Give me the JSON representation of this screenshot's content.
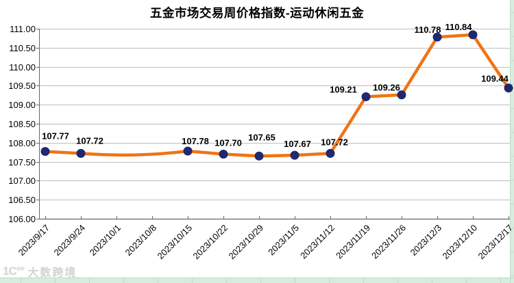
{
  "chart_data": {
    "type": "line",
    "title": "五金市场交易周价格指数-运动休闲五金",
    "categories": [
      "2023/9/17",
      "2023/9/24",
      "2023/10/1",
      "2023/10/8",
      "2023/10/15",
      "2023/10/22",
      "2023/10/29",
      "2023/11/5",
      "2023/11/12",
      "2023/11/19",
      "2023/11/26",
      "2023/12/3",
      "2023/12/10",
      "2023/12/17"
    ],
    "values": [
      107.77,
      107.72,
      null,
      null,
      107.78,
      107.7,
      107.65,
      107.67,
      107.72,
      109.21,
      109.26,
      110.78,
      110.84,
      109.44
    ],
    "data_labels": [
      "107.77",
      "107.72",
      null,
      null,
      "107.78",
      "107.70",
      "107.65",
      "107.67",
      "107.72",
      "109.21",
      "109.26",
      "110.78",
      "110.84",
      "109.44"
    ],
    "xlabel": "",
    "ylabel": "",
    "ylim": [
      106,
      111
    ],
    "ytick_step": 0.5,
    "ytick_labels": [
      "106.00",
      "106.50",
      "107.00",
      "107.50",
      "108.00",
      "108.50",
      "109.00",
      "109.50",
      "110.00",
      "110.50",
      "111.00"
    ],
    "grid": "horizontal-only",
    "legend_position": "none",
    "line_smoothed_over_missing_points": true,
    "colors": {
      "line": "#F07414",
      "marker": "#1F2870",
      "data_label": "#000000",
      "gridline": "#BDBDBD",
      "axis": "#666666",
      "tick_label": "#000000",
      "title": "#000000"
    }
  },
  "watermark": {
    "logo": "1C°°",
    "text": "大数跨境"
  },
  "spreadsheet_background": {
    "cell_fill": "#D8ECDD",
    "cell_line": "#B9DCC4"
  }
}
